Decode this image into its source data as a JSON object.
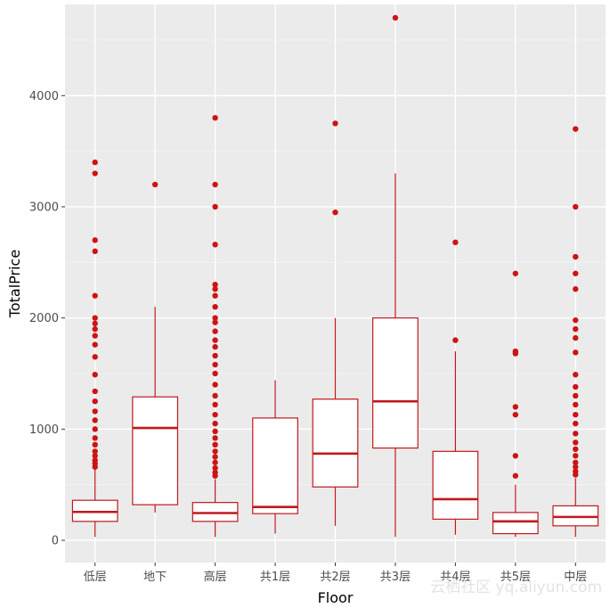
{
  "chart_data": {
    "type": "boxplot",
    "title": "",
    "xlabel": "Floor",
    "ylabel": "TotalPrice",
    "ylim": [
      -200,
      4820
    ],
    "y_ticks": [
      0,
      1000,
      2000,
      3000,
      4000
    ],
    "y_tick_labels": [
      "0",
      "1000",
      "2000",
      "3000",
      "4000"
    ],
    "grid": true,
    "legend": "none",
    "colors": {
      "box_stroke": "#c0191d",
      "box_fill": "#ffffff",
      "outlier": "#cc1414",
      "panel_bg": "#ebebeb",
      "grid_major": "#ffffff",
      "grid_minor": "#f5f5f5"
    },
    "categories": [
      "低层",
      "地下",
      "高层",
      "共1层",
      "共2层",
      "共3层",
      "共4层",
      "共5层",
      "中层"
    ],
    "boxes": [
      {
        "category": "低层",
        "min": 30,
        "q1": 170,
        "median": 255,
        "q3": 360,
        "max": 640,
        "outliers": [
          660,
          690,
          720,
          760,
          800,
          860,
          920,
          1000,
          1080,
          1160,
          1250,
          1340,
          1490,
          1650,
          1760,
          1840,
          1900,
          1950,
          2000,
          2200,
          2600,
          2700,
          3300,
          3400
        ]
      },
      {
        "category": "地下",
        "min": 250,
        "q1": 320,
        "median": 1010,
        "q3": 1290,
        "max": 2100,
        "outliers": [
          3200
        ]
      },
      {
        "category": "高层",
        "min": 30,
        "q1": 170,
        "median": 245,
        "q3": 340,
        "max": 550,
        "outliers": [
          580,
          610,
          650,
          700,
          750,
          800,
          860,
          920,
          980,
          1050,
          1130,
          1220,
          1300,
          1400,
          1500,
          1580,
          1660,
          1740,
          1800,
          1880,
          1960,
          2000,
          2100,
          2200,
          2260,
          2300,
          2660,
          3000,
          3200,
          3800
        ]
      },
      {
        "category": "共1层",
        "min": 60,
        "q1": 240,
        "median": 300,
        "q3": 1100,
        "max": 1440,
        "outliers": []
      },
      {
        "category": "共2层",
        "min": 130,
        "q1": 480,
        "median": 780,
        "q3": 1270,
        "max": 2000,
        "outliers": [
          2950,
          3750
        ]
      },
      {
        "category": "共3层",
        "min": 30,
        "q1": 830,
        "median": 1250,
        "q3": 2000,
        "max": 3300,
        "outliers": [
          4700
        ]
      },
      {
        "category": "共4层",
        "min": 50,
        "q1": 190,
        "median": 370,
        "q3": 800,
        "max": 1700,
        "outliers": [
          1800,
          2680
        ]
      },
      {
        "category": "共5层",
        "min": 30,
        "q1": 60,
        "median": 170,
        "q3": 250,
        "max": 500,
        "outliers": [
          580,
          760,
          1130,
          1200,
          1680,
          1700,
          2400
        ]
      },
      {
        "category": "中层",
        "min": 30,
        "q1": 130,
        "median": 210,
        "q3": 310,
        "max": 560,
        "outliers": [
          590,
          620,
          660,
          700,
          760,
          820,
          880,
          960,
          1050,
          1130,
          1220,
          1300,
          1380,
          1490,
          1690,
          1820,
          1900,
          1980,
          2260,
          2400,
          2550,
          3000,
          3700
        ]
      }
    ]
  },
  "watermark": "云栖社区 yq.aliyun.com"
}
